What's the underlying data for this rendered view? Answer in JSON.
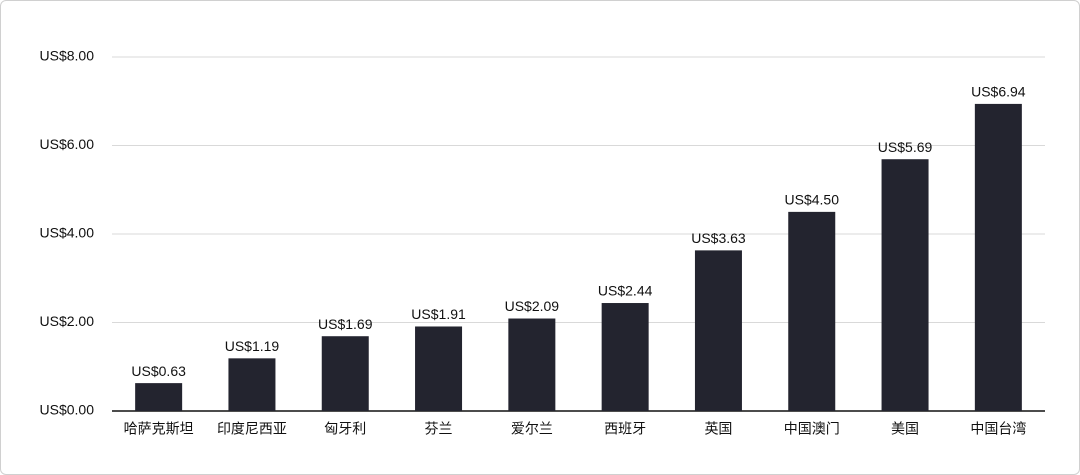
{
  "chart_data": {
    "type": "bar",
    "categories": [
      "哈萨克斯坦",
      "印度尼西亚",
      "匈牙利",
      "芬兰",
      "爱尔兰",
      "西班牙",
      "英国",
      "中国澳门",
      "美国",
      "中国台湾"
    ],
    "values": [
      0.63,
      1.19,
      1.69,
      1.91,
      2.09,
      2.44,
      3.63,
      4.5,
      5.69,
      6.94
    ],
    "value_labels": [
      "US$0.63",
      "US$1.19",
      "US$1.69",
      "US$1.91",
      "US$2.09",
      "US$2.44",
      "US$3.63",
      "US$4.50",
      "US$5.69",
      "US$6.94"
    ],
    "color": "#23242f",
    "ylim": [
      0,
      8
    ],
    "yticks": [
      {
        "value": 0,
        "label": "US$0.00"
      },
      {
        "value": 2,
        "label": "US$2.00"
      },
      {
        "value": 4,
        "label": "US$4.00"
      },
      {
        "value": 6,
        "label": "US$6.00"
      },
      {
        "value": 8,
        "label": "US$8.00"
      }
    ],
    "grid": true
  }
}
